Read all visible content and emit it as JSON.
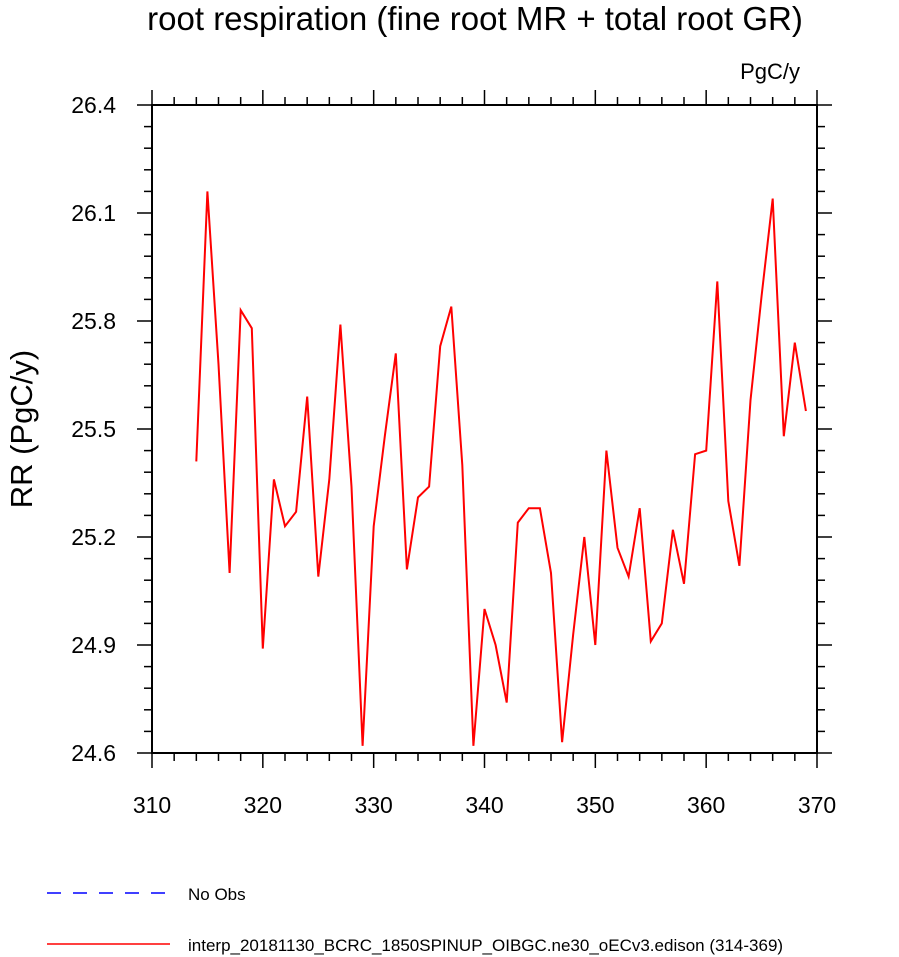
{
  "chart_data": {
    "type": "line",
    "title": "root respiration (fine root MR + total root GR)",
    "units": "PgC/y",
    "xlabel": "",
    "ylabel": "RR  (PgC/y)",
    "xlim": [
      310,
      370
    ],
    "ylim": [
      24.6,
      26.4
    ],
    "xticks": [
      310,
      320,
      330,
      340,
      350,
      360,
      370
    ],
    "yticks": [
      24.6,
      24.9,
      25.2,
      25.5,
      25.8,
      26.1,
      26.4
    ],
    "ytick_labels": [
      "24.6",
      "24.9",
      "25.2",
      "25.5",
      "25.8",
      "26.1",
      "26.4"
    ],
    "grid": false,
    "legend_position": "bottom",
    "legend": [
      {
        "label": "No Obs",
        "color": "#0000ff",
        "style": "dashed"
      },
      {
        "label": "interp_20181130_BCRC_1850SPINUP_OIBGC.ne30_oECv3.edison (314-369)",
        "color": "#ff0000",
        "style": "solid"
      }
    ],
    "series": [
      {
        "name": "interp_20181130_BCRC_1850SPINUP_OIBGC.ne30_oECv3.edison (314-369)",
        "color": "#ff0000",
        "x": [
          314,
          315,
          316,
          317,
          318,
          319,
          320,
          321,
          322,
          323,
          324,
          325,
          326,
          327,
          328,
          329,
          330,
          331,
          332,
          333,
          334,
          335,
          336,
          337,
          338,
          339,
          340,
          341,
          342,
          343,
          344,
          345,
          346,
          347,
          348,
          349,
          350,
          351,
          352,
          353,
          354,
          355,
          356,
          357,
          358,
          359,
          360,
          361,
          362,
          363,
          364,
          365,
          366,
          367,
          368,
          369
        ],
        "y": [
          25.41,
          26.16,
          25.68,
          25.1,
          25.83,
          25.78,
          24.89,
          25.36,
          25.23,
          25.27,
          25.59,
          25.09,
          25.36,
          25.79,
          25.34,
          24.62,
          25.23,
          25.48,
          25.71,
          25.11,
          25.31,
          25.34,
          25.73,
          25.84,
          25.4,
          24.62,
          25.0,
          24.9,
          24.74,
          25.24,
          25.28,
          25.28,
          25.1,
          24.63,
          24.93,
          25.2,
          24.9,
          25.44,
          25.17,
          25.09,
          25.28,
          24.91,
          24.96,
          25.22,
          25.07,
          25.43,
          25.44,
          25.91,
          25.3,
          25.12,
          25.58,
          25.87,
          26.14,
          25.48,
          25.74,
          25.55
        ]
      }
    ]
  }
}
